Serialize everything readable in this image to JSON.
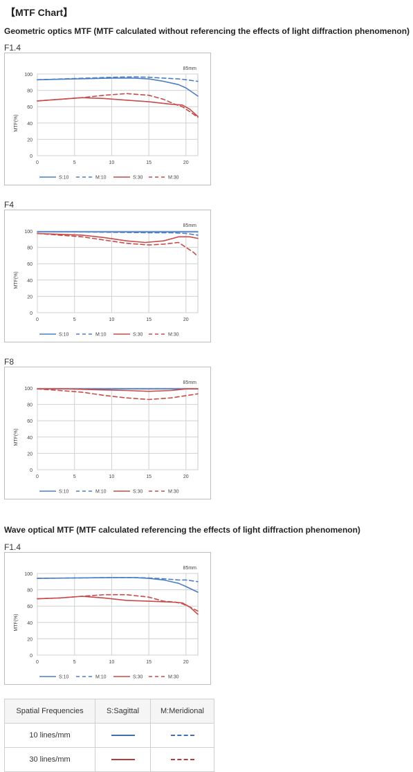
{
  "title": "【MTF Chart】",
  "geometric": {
    "heading": "Geometric optics MTF (MTF calculated without referencing the effects of light diffraction phenomenon)"
  },
  "wave": {
    "heading": "Wave optical MTF (MTF calculated referencing the effects of light diffraction phenomenon)"
  },
  "colors": {
    "sagittal_10": "#4a7ec7",
    "meridional_10": "#4a7ec7",
    "sagittal_30": "#c84a4a",
    "meridional_30": "#c84a4a"
  },
  "chart_data": [
    {
      "type": "line",
      "aperture": "F1.4",
      "annotation": "85mm",
      "ylabel": "MTF(%)",
      "xlim": [
        0,
        21.6
      ],
      "ylim": [
        0,
        100
      ],
      "xticks": [
        "0",
        "5",
        "10",
        "15",
        "20"
      ],
      "yticks": [
        "0",
        "20",
        "40",
        "60",
        "80",
        "100"
      ],
      "legend": [
        "S:10",
        "M:10",
        "S:30",
        "M:30"
      ],
      "series": [
        {
          "name": "S:10",
          "x": [
            0,
            5,
            10,
            13,
            15,
            17,
            19,
            20,
            21.6
          ],
          "y": [
            93,
            94,
            95,
            95,
            94,
            91,
            87,
            83,
            73
          ]
        },
        {
          "name": "M:10",
          "x": [
            0,
            5,
            10,
            13,
            15,
            17,
            19,
            20,
            21.6
          ],
          "y": [
            93,
            94.5,
            96,
            96.5,
            96,
            95,
            94,
            93,
            91
          ]
        },
        {
          "name": "S:30",
          "x": [
            0,
            3,
            6,
            9,
            12,
            15,
            18,
            19.5,
            20.5,
            21.6
          ],
          "y": [
            67,
            69,
            71,
            70,
            68,
            66,
            63,
            62,
            57,
            48
          ]
        },
        {
          "name": "M:30",
          "x": [
            0,
            3,
            6,
            9,
            12,
            15,
            17,
            18.5,
            19.5,
            20.5,
            21.6
          ],
          "y": [
            67,
            69,
            71,
            74,
            76,
            74,
            69,
            63,
            60,
            54,
            47
          ]
        }
      ]
    },
    {
      "type": "line",
      "aperture": "F4",
      "annotation": "85mm",
      "ylabel": "MTF(%)",
      "xlim": [
        0,
        21.6
      ],
      "ylim": [
        0,
        100
      ],
      "xticks": [
        "0",
        "5",
        "10",
        "15",
        "20"
      ],
      "yticks": [
        "0",
        "20",
        "40",
        "60",
        "80",
        "100"
      ],
      "legend": [
        "S:10",
        "M:10",
        "S:30",
        "M:30"
      ],
      "series": [
        {
          "name": "S:10",
          "x": [
            0,
            5,
            10,
            15,
            20,
            21.6
          ],
          "y": [
            99,
            99,
            99,
            99,
            99,
            99
          ]
        },
        {
          "name": "M:10",
          "x": [
            0,
            5,
            10,
            15,
            18,
            20,
            21.6
          ],
          "y": [
            99,
            99,
            98.5,
            98,
            98,
            97,
            95
          ]
        },
        {
          "name": "S:30",
          "x": [
            0,
            3,
            6,
            9,
            12,
            14.5,
            17,
            19,
            20.5,
            21.6
          ],
          "y": [
            97,
            96,
            95,
            92,
            88,
            86,
            88,
            93,
            93,
            91
          ]
        },
        {
          "name": "M:30",
          "x": [
            0,
            3,
            6,
            9,
            12,
            15,
            17,
            19,
            20,
            21,
            21.6
          ],
          "y": [
            97,
            95,
            93,
            89,
            85,
            83,
            84,
            86,
            80,
            74,
            69
          ]
        }
      ]
    },
    {
      "type": "line",
      "aperture": "F8",
      "annotation": "85mm",
      "ylabel": "MTF(%)",
      "xlim": [
        0,
        21.6
      ],
      "ylim": [
        0,
        100
      ],
      "xticks": [
        "0",
        "5",
        "10",
        "15",
        "20"
      ],
      "yticks": [
        "0",
        "20",
        "40",
        "60",
        "80",
        "100"
      ],
      "legend": [
        "S:10",
        "M:10",
        "S:30",
        "M:30"
      ],
      "series": [
        {
          "name": "S:10",
          "x": [
            0,
            5,
            10,
            15,
            20,
            21.6
          ],
          "y": [
            99,
            99,
            99,
            99,
            99,
            99
          ]
        },
        {
          "name": "M:10",
          "x": [
            0,
            5,
            10,
            15,
            20,
            21.6
          ],
          "y": [
            99,
            99,
            99,
            99,
            99,
            99
          ]
        },
        {
          "name": "S:30",
          "x": [
            0,
            4,
            8,
            12,
            15,
            18,
            20,
            21.6
          ],
          "y": [
            99,
            99,
            98,
            97,
            96,
            97,
            99,
            99
          ]
        },
        {
          "name": "M:30",
          "x": [
            0,
            3,
            6,
            9,
            12,
            15,
            18,
            21.6
          ],
          "y": [
            99,
            97,
            95,
            91,
            88,
            86,
            88,
            93
          ]
        }
      ]
    },
    {
      "type": "line",
      "aperture": "F1.4",
      "annotation": "85mm",
      "ylabel": "MTF(%)",
      "xlim": [
        0,
        21.6
      ],
      "ylim": [
        0,
        100
      ],
      "xticks": [
        "0",
        "5",
        "10",
        "15",
        "20"
      ],
      "yticks": [
        "0",
        "20",
        "40",
        "60",
        "80",
        "100"
      ],
      "legend": [
        "S:10",
        "M:10",
        "S:30",
        "M:30"
      ],
      "series": [
        {
          "name": "S:10",
          "x": [
            0,
            5,
            10,
            13,
            15,
            17,
            19,
            20,
            21.6
          ],
          "y": [
            94,
            94.5,
            95,
            95,
            94,
            92,
            88,
            84,
            77
          ]
        },
        {
          "name": "M:10",
          "x": [
            0,
            5,
            10,
            13,
            15,
            17,
            19,
            20,
            21.6
          ],
          "y": [
            94,
            94.5,
            95,
            95,
            94.5,
            93.5,
            92,
            92,
            90
          ]
        },
        {
          "name": "S:30",
          "x": [
            0,
            3,
            6,
            9,
            12,
            15,
            18,
            19.5,
            20.5,
            21.6
          ],
          "y": [
            69,
            70,
            72,
            70,
            67,
            66,
            65,
            64,
            59,
            50
          ]
        },
        {
          "name": "M:30",
          "x": [
            0,
            3,
            6,
            9,
            12,
            15,
            17,
            18.5,
            19.5,
            20.5,
            21.6
          ],
          "y": [
            69,
            70,
            72,
            74,
            74,
            71,
            66,
            65,
            63,
            59,
            54
          ]
        }
      ]
    }
  ],
  "legend_table": {
    "headers": [
      "Spatial Frequencies",
      "S:Sagittal",
      "M:Meridional"
    ],
    "rows": [
      {
        "label": "10 lines/mm",
        "color": "#3f6fb0"
      },
      {
        "label": "30 lines/mm",
        "color": "#b83a3a"
      }
    ]
  }
}
